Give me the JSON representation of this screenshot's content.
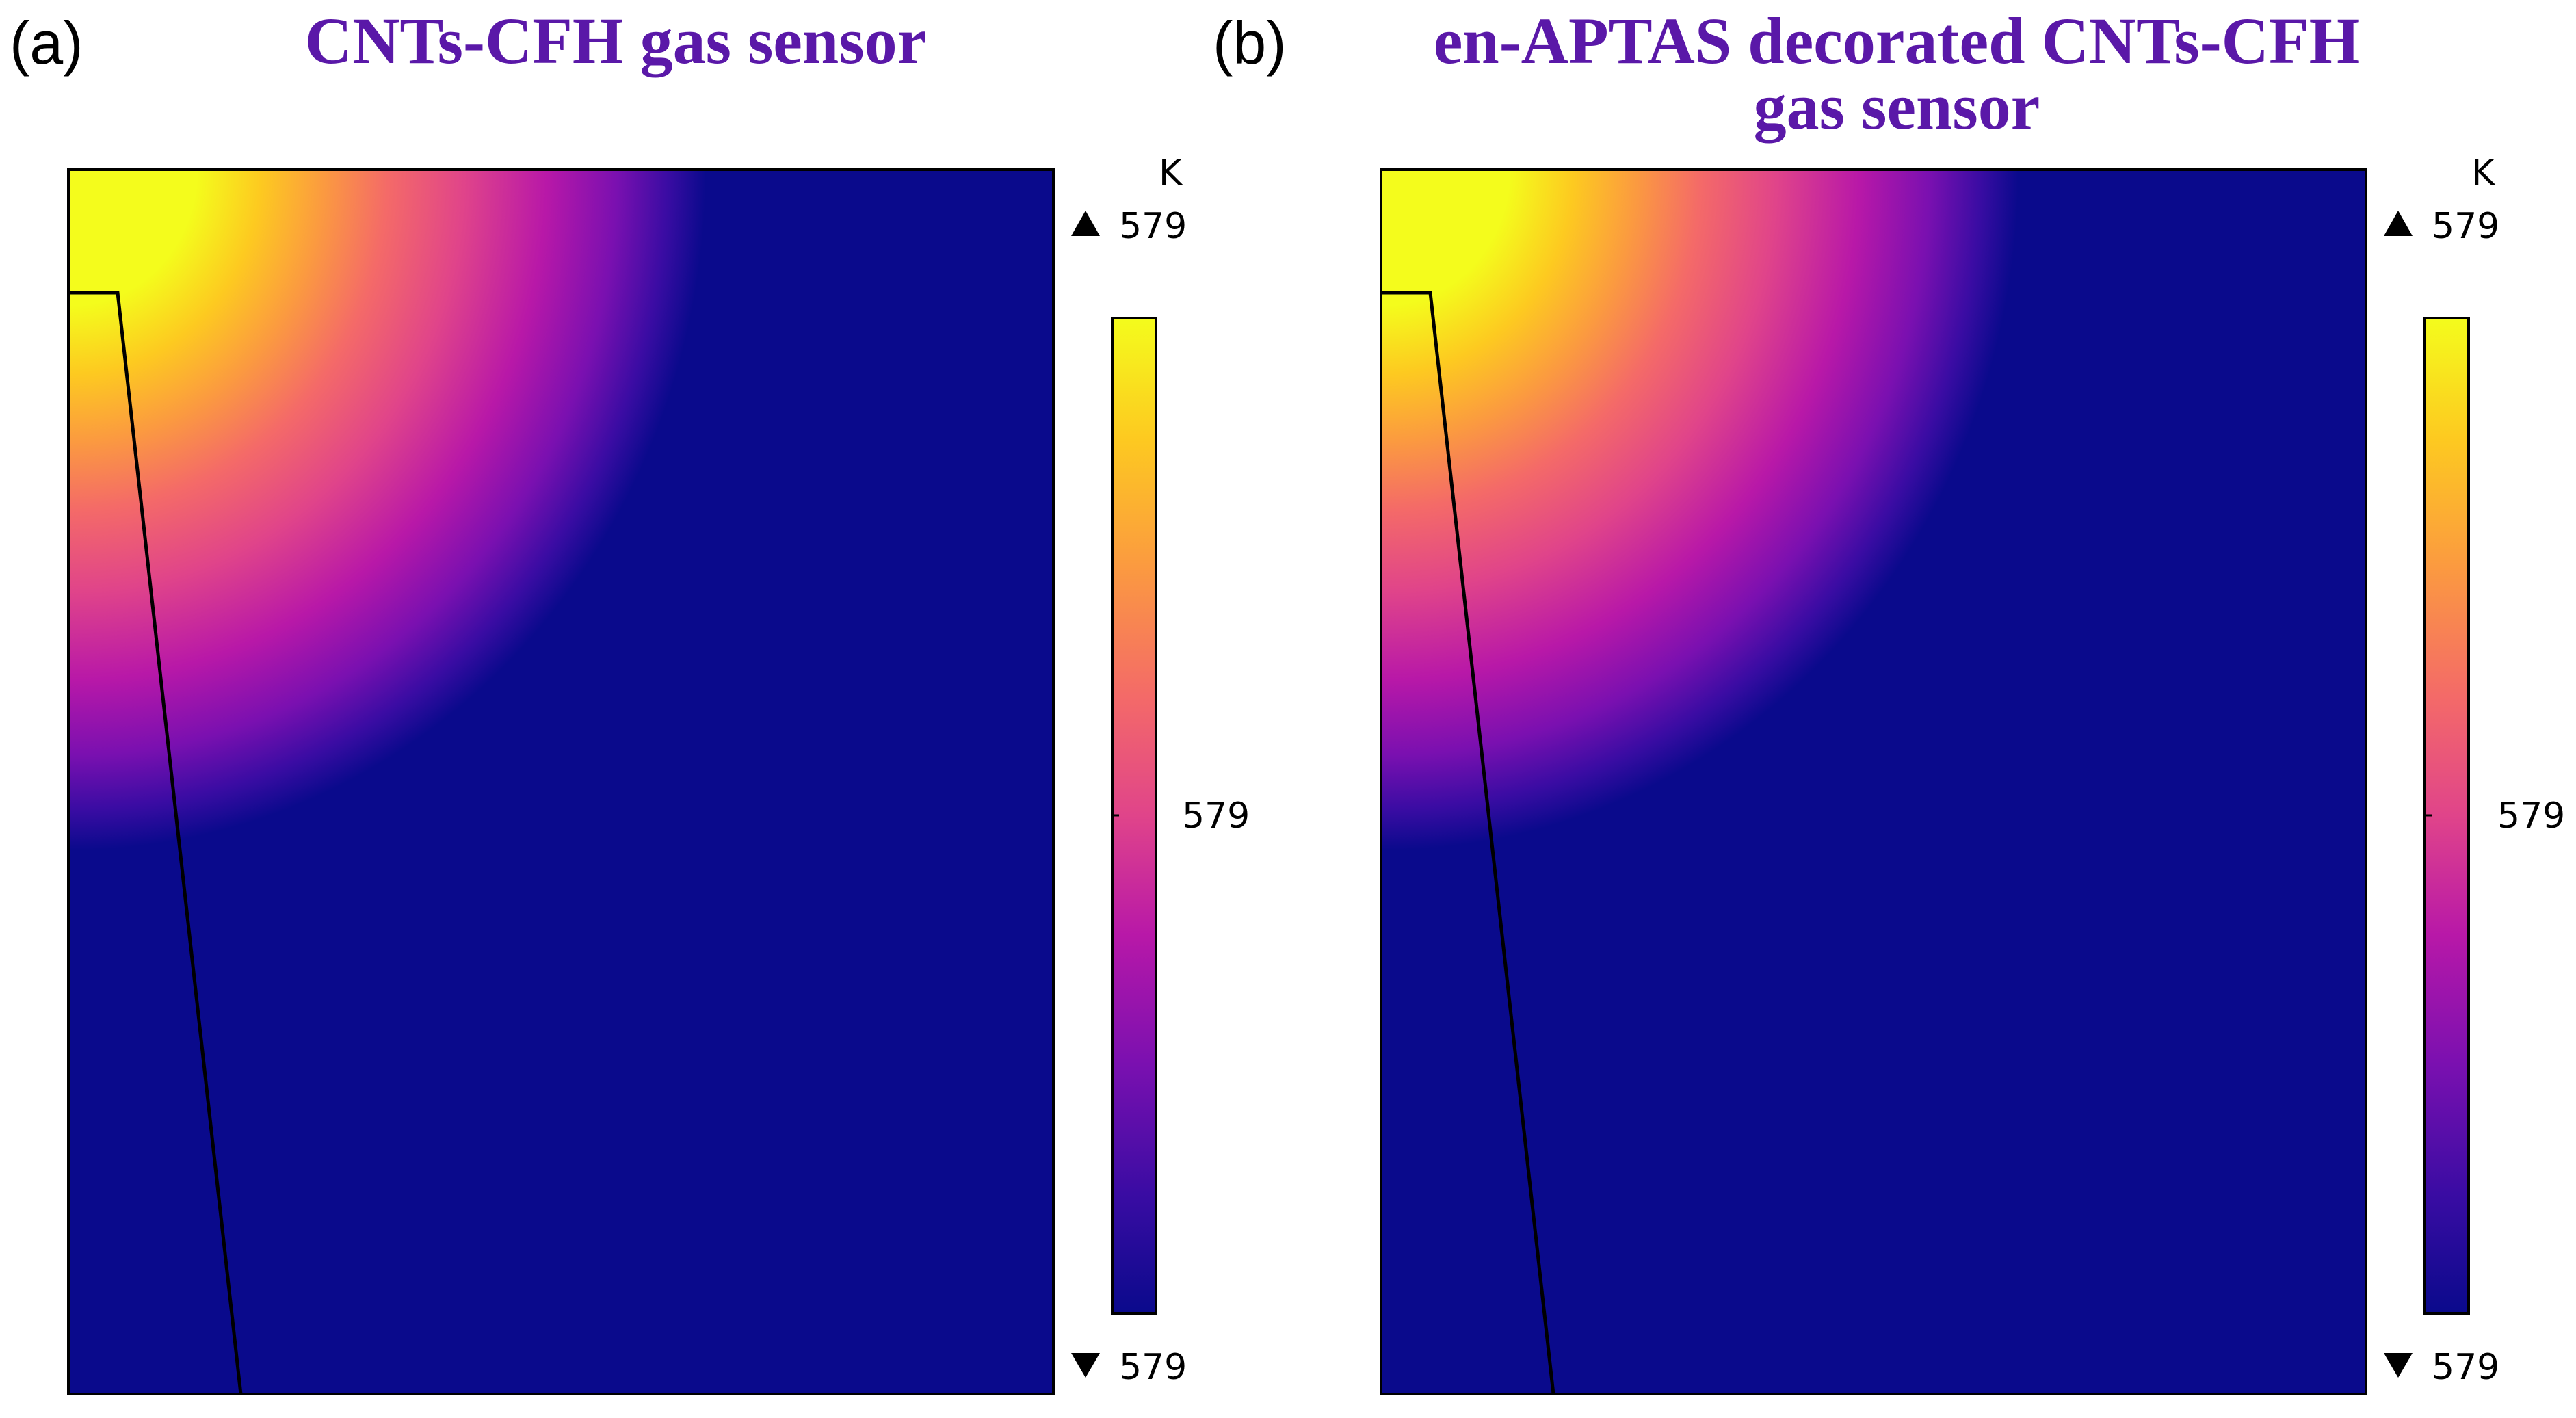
{
  "panels": [
    {
      "label": "(a)",
      "title": "CNTs-CFH gas sensor"
    },
    {
      "label": "(b)",
      "title": "en-APTAS decorated CNTs-CFH gas sensor"
    }
  ],
  "colors": {
    "background": "#0a0a8c",
    "title": "#5a18a8",
    "colormap": [
      "#0a0a8c",
      "#3a0ca3",
      "#7a10b0",
      "#b818a8",
      "#e0448a",
      "#f46a68",
      "#fb9a40",
      "#fdca20",
      "#f4fc1c"
    ]
  },
  "chart_data": [
    {
      "type": "heatmap",
      "title": "CNTs-CFH gas sensor",
      "colorbar": {
        "unit": "K",
        "max_label": "579",
        "mid_label": "579",
        "min_label": "579"
      },
      "hotspot": "top-left"
    },
    {
      "type": "heatmap",
      "title": "en-APTAS decorated CNTs-CFH gas sensor",
      "colorbar": {
        "unit": "K",
        "max_label": "579",
        "mid_label": "579",
        "min_label": "579"
      },
      "hotspot": "top-left"
    }
  ]
}
